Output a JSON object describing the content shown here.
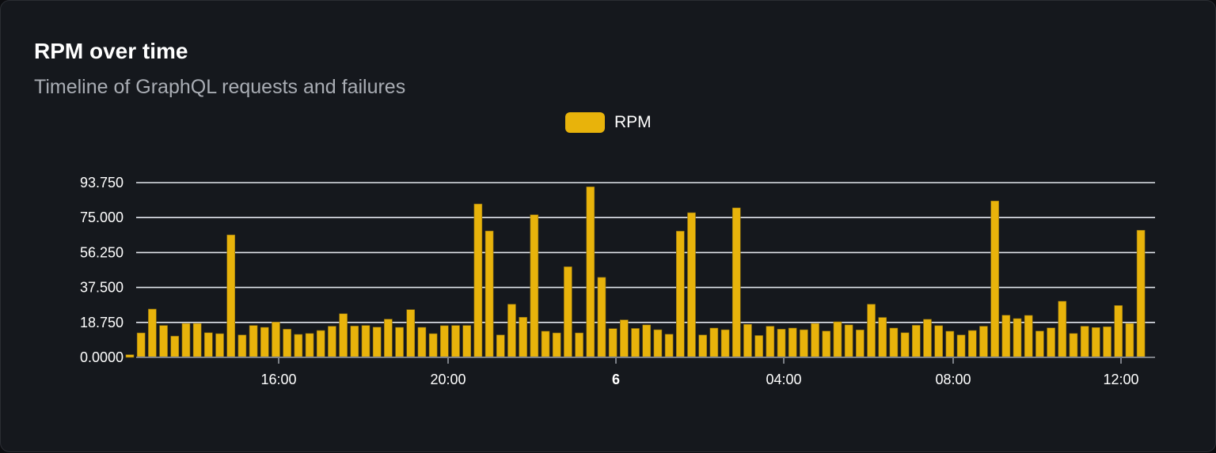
{
  "card": {
    "title": "RPM over time",
    "subtitle": "Timeline of GraphQL requests and failures"
  },
  "chart_data": {
    "type": "bar",
    "title": "RPM over time",
    "subtitle": "Timeline of GraphQL requests and failures",
    "legend": {
      "position": "top-center",
      "entries": [
        {
          "label": "RPM",
          "color": "#e8b30b"
        }
      ]
    },
    "series": [
      {
        "name": "RPM",
        "color": "#e8b30b",
        "values": [
          1.4,
          13.1,
          25.9,
          17.1,
          11.4,
          18.2,
          18.2,
          13.2,
          12.7,
          65.7,
          12.0,
          17.1,
          16.1,
          18.9,
          15.1,
          12.3,
          12.8,
          14.4,
          16.7,
          23.4,
          16.8,
          17.1,
          16.2,
          20.5,
          16.1,
          25.6,
          16.1,
          12.7,
          17.0,
          17.1,
          17.1,
          82.3,
          67.8,
          12.0,
          28.5,
          21.5,
          76.5,
          14.0,
          13.1,
          48.6,
          13.1,
          91.5,
          42.9,
          15.4,
          20.1,
          15.5,
          17.4,
          14.8,
          12.4,
          67.7,
          77.6,
          12.0,
          15.7,
          14.8,
          80.2,
          17.7,
          11.7,
          16.7,
          15.1,
          15.7,
          14.8,
          18.2,
          14.1,
          19.1,
          17.4,
          14.7,
          28.5,
          21.4,
          15.7,
          13.2,
          17.2,
          20.4,
          17.0,
          14.0,
          12.0,
          14.4,
          16.7,
          83.9,
          22.6,
          20.8,
          22.5,
          14.1,
          15.8,
          30.1,
          12.8,
          16.7,
          16.0,
          16.4,
          27.8,
          18.2,
          68.2
        ]
      }
    ],
    "y_ticks": [
      "0.0000",
      "18.750",
      "37.500",
      "56.250",
      "75.000",
      "93.750"
    ],
    "ylim": [
      0,
      93.75
    ],
    "x_ticks": [
      "16:00",
      "20:00",
      "6",
      "04:00",
      "08:00",
      "12:00"
    ],
    "grid": "horizontal"
  }
}
